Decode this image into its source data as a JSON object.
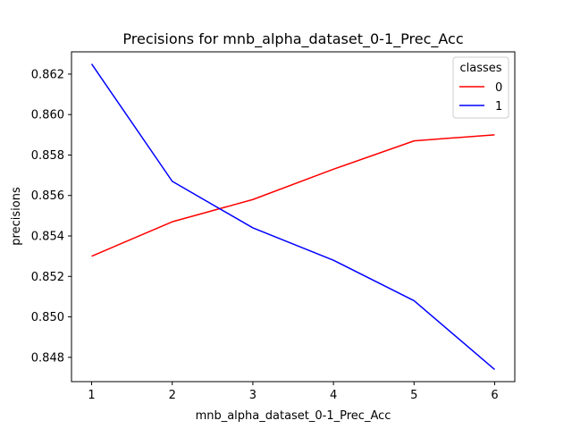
{
  "chart_data": {
    "type": "line",
    "title": "Precisions for mnb_alpha_dataset_0-1_Prec_Acc",
    "xlabel": "mnb_alpha_dataset_0-1_Prec_Acc",
    "ylabel": "precisions",
    "x": [
      1,
      2,
      3,
      4,
      5,
      6
    ],
    "xticks": [
      "1",
      "2",
      "3",
      "4",
      "5",
      "6"
    ],
    "yticks": [
      "0.848",
      "0.850",
      "0.852",
      "0.854",
      "0.856",
      "0.858",
      "0.860",
      "0.862"
    ],
    "ylim": [
      0.8468,
      0.8631
    ],
    "xlim": [
      0.75,
      6.25
    ],
    "grid": false,
    "legend": {
      "title": "classes",
      "position": "top-right"
    },
    "series": [
      {
        "name": "0",
        "color": "#ff0000",
        "values": [
          0.853,
          0.8547,
          0.8558,
          0.8573,
          0.8587,
          0.859
        ]
      },
      {
        "name": "1",
        "color": "#0000ff",
        "values": [
          0.8625,
          0.8567,
          0.8544,
          0.8528,
          0.8508,
          0.8474
        ]
      }
    ]
  }
}
